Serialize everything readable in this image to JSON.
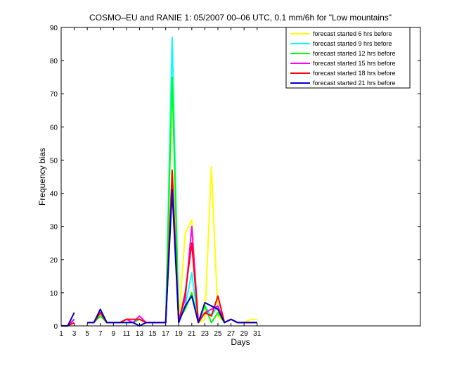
{
  "chart_data": {
    "type": "line",
    "title": "COSMO–EU and RANIE 1: 05/2007 00–06 UTC, 0.1 mm/6h for \"Low mountains\"",
    "xlabel": "Days",
    "ylabel": "Frequency bias",
    "xlim": [
      1,
      56
    ],
    "ylim": [
      0,
      90
    ],
    "xticks": [
      1,
      3,
      5,
      7,
      9,
      11,
      13,
      15,
      17,
      19,
      21,
      23,
      25,
      27,
      29,
      31
    ],
    "yticks": [
      0,
      10,
      20,
      30,
      40,
      50,
      60,
      70,
      80,
      90
    ],
    "grid": false,
    "legend_position": "top-right",
    "x": [
      1,
      2,
      3,
      4,
      5,
      6,
      7,
      8,
      9,
      10,
      11,
      12,
      13,
      14,
      15,
      16,
      17,
      18,
      19,
      20,
      21,
      22,
      23,
      24,
      25,
      26,
      27,
      28,
      29,
      30,
      31
    ],
    "series": [
      {
        "name": "forecast started 6 hrs before",
        "color": "#ffff00",
        "values": [
          0,
          0,
          1,
          null,
          1,
          1,
          3,
          1,
          1,
          1,
          1,
          1,
          2,
          1,
          1,
          1,
          1,
          75,
          1,
          28,
          32,
          1,
          2,
          48,
          3,
          1,
          2,
          1,
          1,
          2,
          2
        ]
      },
      {
        "name": "forecast started 9 hrs before",
        "color": "#00ffff",
        "values": [
          0,
          0,
          2,
          null,
          1,
          1,
          4,
          1,
          1,
          1,
          1,
          1,
          2,
          1,
          1,
          1,
          1,
          87,
          2,
          6,
          16,
          1,
          6,
          3,
          6,
          1,
          2,
          1,
          1,
          1,
          1
        ]
      },
      {
        "name": "forecast started 12 hrs before",
        "color": "#00ff00",
        "values": [
          0,
          0,
          2,
          null,
          1,
          1,
          3,
          1,
          1,
          1,
          1,
          1,
          2,
          1,
          1,
          1,
          1,
          75,
          2,
          5,
          10,
          1,
          6,
          1,
          4,
          1,
          2,
          1,
          1,
          1,
          1
        ]
      },
      {
        "name": "forecast started 15 hrs before",
        "color": "#ff00ff",
        "values": [
          0,
          0,
          2,
          null,
          1,
          1,
          4,
          1,
          1,
          1,
          2,
          1,
          3,
          1,
          1,
          1,
          1,
          43,
          2,
          8,
          30,
          1,
          4,
          5,
          6,
          1,
          2,
          1,
          1,
          1,
          1
        ]
      },
      {
        "name": "forecast started 18 hrs before",
        "color": "#ff0000",
        "values": [
          0,
          0,
          1,
          null,
          1,
          1,
          4,
          1,
          1,
          1,
          2,
          2,
          2,
          1,
          1,
          1,
          1,
          47,
          1,
          10,
          25,
          1,
          4,
          3,
          9,
          1,
          2,
          1,
          1,
          1,
          1
        ]
      },
      {
        "name": "forecast started 21 hrs before",
        "color": "#0000cc",
        "values": [
          0,
          0,
          4,
          null,
          1,
          1,
          5,
          1,
          1,
          1,
          1,
          1,
          0,
          1,
          1,
          1,
          1,
          41,
          1,
          6,
          9,
          1,
          7,
          6,
          5,
          1,
          2,
          1,
          1,
          1,
          1
        ]
      }
    ]
  }
}
